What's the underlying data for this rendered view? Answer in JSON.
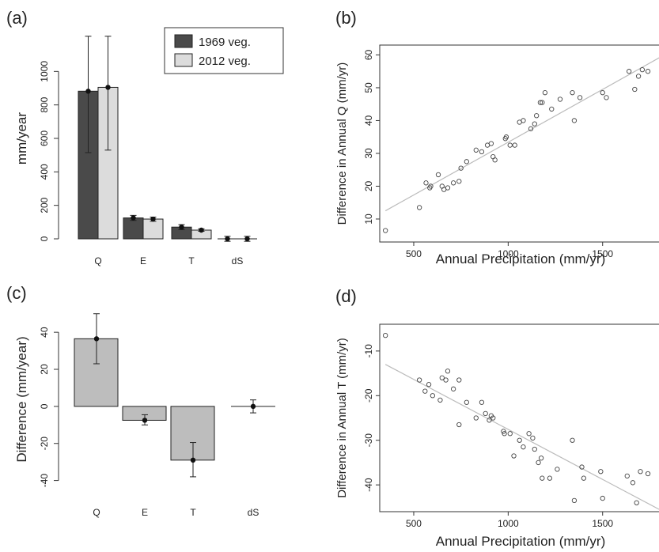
{
  "chart_data": [
    {
      "type": "bar",
      "panel_label": "(a)",
      "categories": [
        "Q",
        "E",
        "T",
        "dS"
      ],
      "ylabel": "mm/year",
      "ylim": [
        0,
        1200
      ],
      "yticks": [
        0,
        200,
        400,
        600,
        800,
        1000
      ],
      "legend_position": "top-right",
      "series": [
        {
          "name": "1969 veg.",
          "color": "#4a4a4a",
          "values": [
            882,
            125,
            70,
            0
          ],
          "means": [
            882,
            125,
            70,
            0
          ],
          "errors": [
            [
              515,
              1250
            ],
            [
              110,
              140
            ],
            [
              55,
              85
            ],
            [
              -15,
              15
            ]
          ]
        },
        {
          "name": "2012 veg.",
          "color": "#dcdcdc",
          "values": [
            905,
            118,
            52,
            0
          ],
          "means": [
            905,
            118,
            52,
            0
          ],
          "errors": [
            [
              530,
              1280
            ],
            [
              105,
              130
            ],
            [
              45,
              60
            ],
            [
              -15,
              15
            ]
          ]
        }
      ]
    },
    {
      "type": "scatter",
      "panel_label": "(b)",
      "xlabel": "Annual Precipitation (mm/yr)",
      "ylabel": "Difference in Annual Q (mm/yr)",
      "xlim": [
        320,
        1920
      ],
      "ylim": [
        3,
        63
      ],
      "xticks": [
        500,
        1000,
        1500
      ],
      "yticks": [
        10,
        20,
        30,
        40,
        50,
        60
      ],
      "points": [
        [
          350,
          6.5
        ],
        [
          530,
          13.5
        ],
        [
          565,
          21
        ],
        [
          585,
          19.5
        ],
        [
          590,
          20
        ],
        [
          630,
          23.5
        ],
        [
          650,
          20
        ],
        [
          660,
          19
        ],
        [
          680,
          19.5
        ],
        [
          710,
          21
        ],
        [
          740,
          21.5
        ],
        [
          750,
          25.5
        ],
        [
          780,
          27.5
        ],
        [
          830,
          31
        ],
        [
          860,
          30.5
        ],
        [
          890,
          32.5
        ],
        [
          910,
          33
        ],
        [
          920,
          29
        ],
        [
          930,
          28
        ],
        [
          985,
          34.5
        ],
        [
          990,
          35
        ],
        [
          1010,
          32.5
        ],
        [
          1035,
          32.5
        ],
        [
          1060,
          39.5
        ],
        [
          1080,
          40
        ],
        [
          1120,
          37.5
        ],
        [
          1140,
          39
        ],
        [
          1150,
          41.5
        ],
        [
          1170,
          45.5
        ],
        [
          1180,
          45.5
        ],
        [
          1195,
          48.5
        ],
        [
          1230,
          43.5
        ],
        [
          1275,
          46.5
        ],
        [
          1340,
          48.5
        ],
        [
          1350,
          40
        ],
        [
          1380,
          47
        ],
        [
          1500,
          48.5
        ],
        [
          1520,
          47
        ],
        [
          1640,
          55
        ],
        [
          1670,
          49.5
        ],
        [
          1690,
          53.5
        ],
        [
          1710,
          55.5
        ],
        [
          1740,
          55
        ],
        [
          1855,
          60.5
        ],
        [
          1900,
          61.5
        ]
      ],
      "fit_line": [
        [
          350,
          12.5
        ],
        [
          1920,
          63
        ]
      ]
    },
    {
      "type": "bar",
      "panel_label": "(c)",
      "categories": [
        "Q",
        "E",
        "T",
        "dS"
      ],
      "ylabel": "Difference (mm/year)",
      "ylim": [
        -47,
        55
      ],
      "yticks": [
        -40,
        -20,
        0,
        20,
        40
      ],
      "series": [
        {
          "name": "",
          "color": "#bdbdbd",
          "values": [
            36.5,
            -7.5,
            -29,
            0
          ],
          "means": [
            36.5,
            -7.5,
            -29,
            0
          ],
          "errors": [
            [
              23,
              50
            ],
            [
              -10,
              -4.5
            ],
            [
              -38,
              -19.5
            ],
            [
              -3.5,
              3.5
            ]
          ]
        }
      ]
    },
    {
      "type": "scatter",
      "panel_label": "(d)",
      "xlabel": "Annual Precipitation (mm/yr)",
      "ylabel": "Difference in Annual T (mm/yr)",
      "xlim": [
        320,
        1920
      ],
      "ylim": [
        -46,
        -4
      ],
      "xticks": [
        500,
        1000,
        1500
      ],
      "yticks": [
        -10,
        -20,
        -30,
        -40
      ],
      "points": [
        [
          350,
          -6.5
        ],
        [
          530,
          -16.5
        ],
        [
          560,
          -19
        ],
        [
          580,
          -17.5
        ],
        [
          600,
          -20
        ],
        [
          640,
          -21
        ],
        [
          650,
          -16
        ],
        [
          670,
          -16.5
        ],
        [
          680,
          -14.5
        ],
        [
          710,
          -18.5
        ],
        [
          740,
          -16.5
        ],
        [
          740,
          -26.5
        ],
        [
          780,
          -21.5
        ],
        [
          830,
          -25
        ],
        [
          860,
          -21.5
        ],
        [
          880,
          -24
        ],
        [
          900,
          -25.5
        ],
        [
          910,
          -24.5
        ],
        [
          920,
          -25
        ],
        [
          975,
          -28
        ],
        [
          980,
          -28.5
        ],
        [
          1010,
          -28.5
        ],
        [
          1030,
          -33.5
        ],
        [
          1060,
          -30
        ],
        [
          1080,
          -31.5
        ],
        [
          1110,
          -28.5
        ],
        [
          1130,
          -29.5
        ],
        [
          1140,
          -32
        ],
        [
          1160,
          -35
        ],
        [
          1175,
          -34
        ],
        [
          1180,
          -38.5
        ],
        [
          1220,
          -38.5
        ],
        [
          1260,
          -36.5
        ],
        [
          1340,
          -30
        ],
        [
          1350,
          -43.5
        ],
        [
          1390,
          -36
        ],
        [
          1400,
          -38.5
        ],
        [
          1490,
          -37
        ],
        [
          1500,
          -43
        ],
        [
          1630,
          -38
        ],
        [
          1660,
          -39.5
        ],
        [
          1680,
          -44
        ],
        [
          1700,
          -37
        ],
        [
          1740,
          -37.5
        ],
        [
          1860,
          -43
        ],
        [
          1900,
          -40
        ]
      ],
      "fit_line": [
        [
          350,
          -13
        ],
        [
          1800,
          -45.5
        ]
      ]
    }
  ]
}
